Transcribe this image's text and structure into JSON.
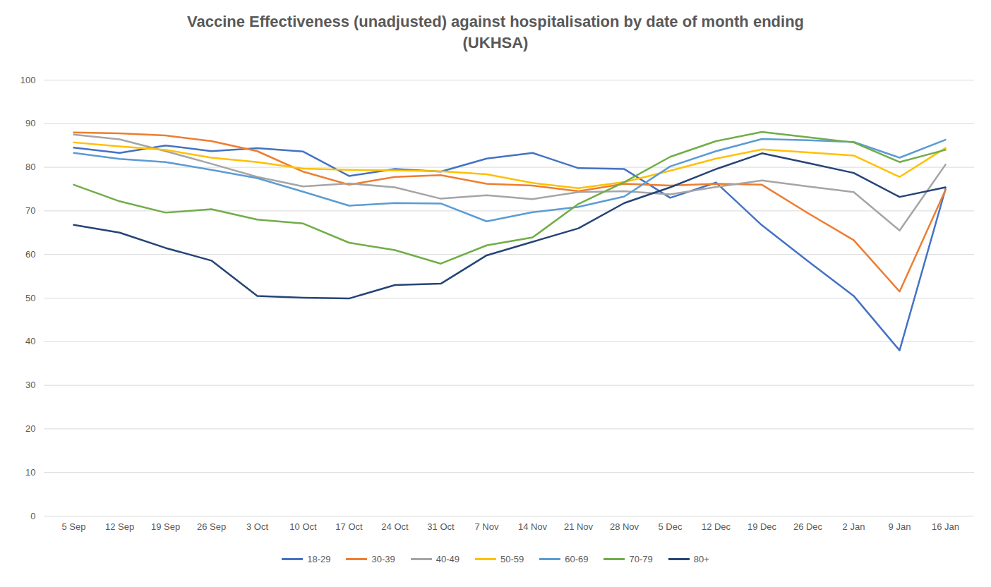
{
  "chart_data": {
    "type": "line",
    "title": "Vaccine Effectiveness (unadjusted) against hospitalisation by date of month ending\n(UKHSA)",
    "categories": [
      "5 Sep",
      "12 Sep",
      "19 Sep",
      "26 Sep",
      "3 Oct",
      "10 Oct",
      "17 Oct",
      "24 Oct",
      "31 Oct",
      "7 Nov",
      "14 Nov",
      "21 Nov",
      "28 Nov",
      "5 Dec",
      "12 Dec",
      "19 Dec",
      "26 Dec",
      "2 Jan",
      "9 Jan",
      "16 Jan"
    ],
    "series": [
      {
        "name": "18-29",
        "color": "#4472c4",
        "values": [
          84.5,
          83.3,
          85,
          83.7,
          84.4,
          83.6,
          78,
          79.6,
          79,
          82,
          83.3,
          79.8,
          79.6,
          73,
          76.5,
          66.7,
          58.5,
          50.5,
          38,
          75
        ]
      },
      {
        "name": "30-39",
        "color": "#ed7d31",
        "values": [
          88,
          87.8,
          87.3,
          86,
          83.7,
          79,
          76,
          77.8,
          78.2,
          76.2,
          75.8,
          74.5,
          76.2,
          75.8,
          76.2,
          76,
          69.5,
          63.3,
          51.5,
          74.8
        ]
      },
      {
        "name": "40-49",
        "color": "#a5a5a5",
        "values": [
          87.5,
          86.4,
          83.7,
          80.8,
          77.8,
          75.6,
          76.3,
          75.4,
          72.8,
          73.6,
          72.7,
          74.3,
          74.5,
          73.8,
          75.5,
          77,
          75.6,
          74.3,
          65.5,
          80.6
        ]
      },
      {
        "name": "50-59",
        "color": "#ffc000",
        "values": [
          85.7,
          84.8,
          84,
          82.2,
          81.2,
          79.7,
          79.4,
          79.3,
          79.1,
          78.4,
          76.4,
          75.2,
          76.6,
          79.2,
          82,
          84.1,
          83.4,
          82.7,
          77.8,
          84.4
        ]
      },
      {
        "name": "60-69",
        "color": "#5b9bd5",
        "values": [
          83.3,
          81.9,
          81.2,
          79.4,
          77.5,
          74.4,
          71.2,
          71.8,
          71.7,
          67.6,
          69.7,
          70.9,
          73.3,
          80.2,
          83.7,
          86.5,
          86.2,
          85.8,
          82.2,
          86.3
        ]
      },
      {
        "name": "70-79",
        "color": "#70ad47",
        "values": [
          76,
          72.2,
          69.6,
          70.4,
          68,
          67.1,
          62.7,
          61,
          57.9,
          62.1,
          63.9,
          71.6,
          76.6,
          82.4,
          86,
          88.1,
          86.9,
          85.7,
          81.2,
          84
        ]
      },
      {
        "name": "80+",
        "color": "#264478",
        "values": [
          66.8,
          65,
          61.5,
          58.6,
          50.5,
          50.1,
          49.9,
          53,
          53.3,
          59.8,
          62.9,
          66,
          71.8,
          75.4,
          79.6,
          83.2,
          81,
          78.7,
          73.2,
          75.4
        ]
      }
    ],
    "ylim": [
      0,
      100
    ],
    "yticks": [
      0,
      10,
      20,
      30,
      40,
      50,
      60,
      70,
      80,
      90,
      100
    ],
    "grid": true,
    "legend": "bottom"
  }
}
